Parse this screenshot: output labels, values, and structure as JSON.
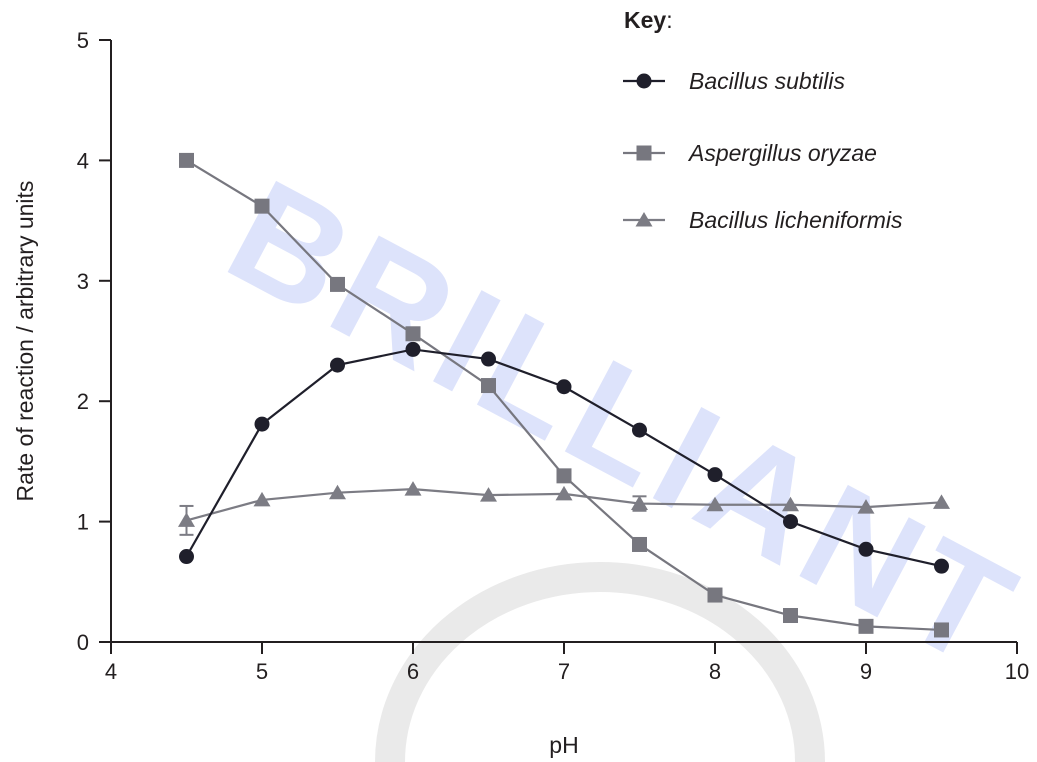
{
  "chart_data": {
    "type": "line",
    "xlabel": "pH",
    "ylabel": "Rate of reaction / arbitrary units",
    "xlim": [
      4,
      10
    ],
    "ylim": [
      0,
      5
    ],
    "x_ticks": [
      "4",
      "5",
      "6",
      "7",
      "8",
      "9",
      "10"
    ],
    "y_ticks": [
      "0",
      "1",
      "2",
      "3",
      "4",
      "5"
    ],
    "grid": false,
    "legend_title": "Key",
    "legend_colon": ":",
    "legend_position": "top-right",
    "watermark": "BRILLIANT",
    "series": [
      {
        "name": "Bacillus subtilis",
        "marker": "circle",
        "color": "#1f1f2b",
        "x": [
          4.5,
          5,
          5.5,
          6,
          6.5,
          7,
          7.5,
          8,
          8.5,
          9,
          9.5
        ],
        "values": [
          0.71,
          1.81,
          2.3,
          2.43,
          2.35,
          2.12,
          1.76,
          1.39,
          1.0,
          0.77,
          0.63
        ]
      },
      {
        "name": "Aspergillus oryzae",
        "marker": "square",
        "color": "#77777f",
        "x": [
          4.5,
          5,
          5.5,
          6,
          6.5,
          7,
          7.5,
          8,
          8.5,
          9,
          9.5
        ],
        "values": [
          4.0,
          3.62,
          2.97,
          2.56,
          2.13,
          1.38,
          0.81,
          0.39,
          0.22,
          0.13,
          0.1
        ]
      },
      {
        "name": "Bacillus licheniformis",
        "marker": "triangle",
        "color": "#7c7c84",
        "x": [
          4.5,
          5,
          5.5,
          6,
          6.5,
          7,
          7.5,
          8,
          8.5,
          9,
          9.5
        ],
        "values": [
          1.01,
          1.18,
          1.24,
          1.27,
          1.22,
          1.23,
          1.15,
          1.14,
          1.14,
          1.12,
          1.16
        ],
        "error": [
          0.12,
          0,
          0,
          0,
          0,
          0,
          0.06,
          0,
          0,
          0,
          0
        ]
      }
    ]
  }
}
